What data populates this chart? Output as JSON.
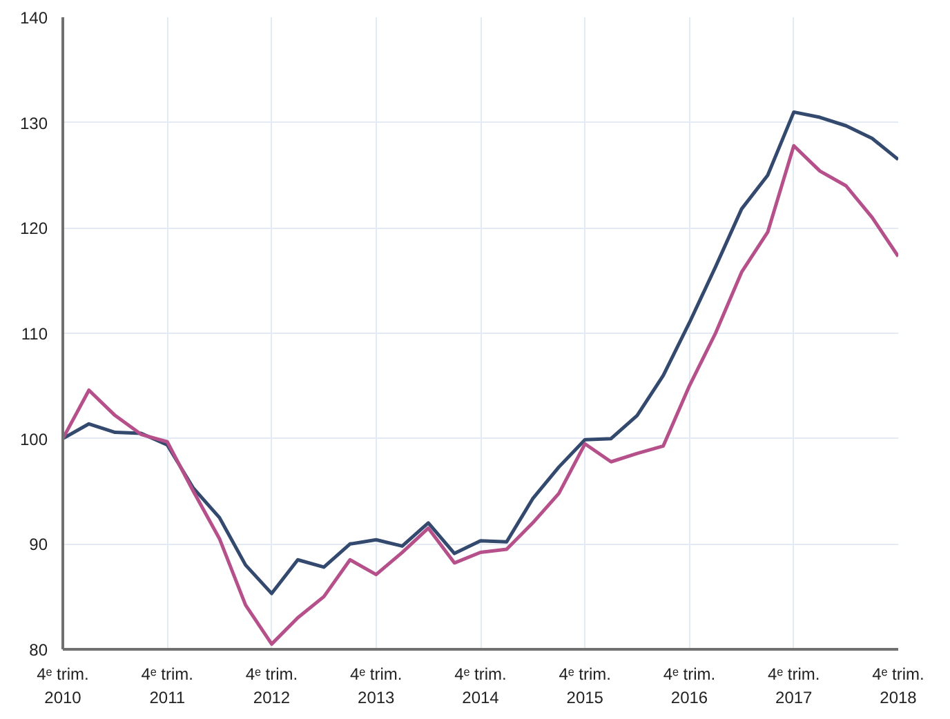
{
  "chart_data": {
    "type": "line",
    "categories": [
      "4ᵉ trim.\n2010",
      null,
      null,
      null,
      "4ᵉ trim.\n2011",
      null,
      null,
      null,
      "4ᵉ trim.\n2012",
      null,
      null,
      null,
      "4ᵉ trim.\n2013",
      null,
      null,
      null,
      "4ᵉ trim.\n2014",
      null,
      null,
      null,
      "4ᵉ trim.\n2015",
      null,
      null,
      null,
      "4ᵉ trim.\n2016",
      null,
      null,
      null,
      "4ᵉ trim.\n2017",
      null,
      null,
      null,
      "4ᵉ trim.\n2018"
    ],
    "series": [
      {
        "color": "#34496e",
        "values": [
          100,
          101.4,
          100.6,
          100.5,
          99.4,
          95.3,
          92.5,
          88,
          85.3,
          88.5,
          87.8,
          90,
          90.4,
          89.8,
          92,
          89.1,
          90.3,
          90.2,
          94.3,
          97.3,
          99.9,
          100,
          102.2,
          106,
          111,
          116.3,
          121.8,
          125,
          131,
          130.5,
          129.7,
          128.5,
          126.5
        ]
      },
      {
        "color": "#b5508a",
        "values": [
          100,
          104.6,
          102.2,
          100.4,
          99.7,
          95,
          90.5,
          84.2,
          80.5,
          83,
          85,
          88.5,
          87.1,
          89.2,
          91.5,
          88.2,
          89.2,
          89.5,
          92,
          94.8,
          99.5,
          97.8,
          98.6,
          99.3,
          105,
          110,
          115.8,
          119.6,
          127.8,
          125.4,
          124,
          121,
          117.3
        ]
      }
    ],
    "ylim": [
      80,
      140
    ],
    "yticks": [
      80,
      90,
      100,
      110,
      120,
      130,
      140
    ],
    "grid": true,
    "line_style": "solid"
  }
}
